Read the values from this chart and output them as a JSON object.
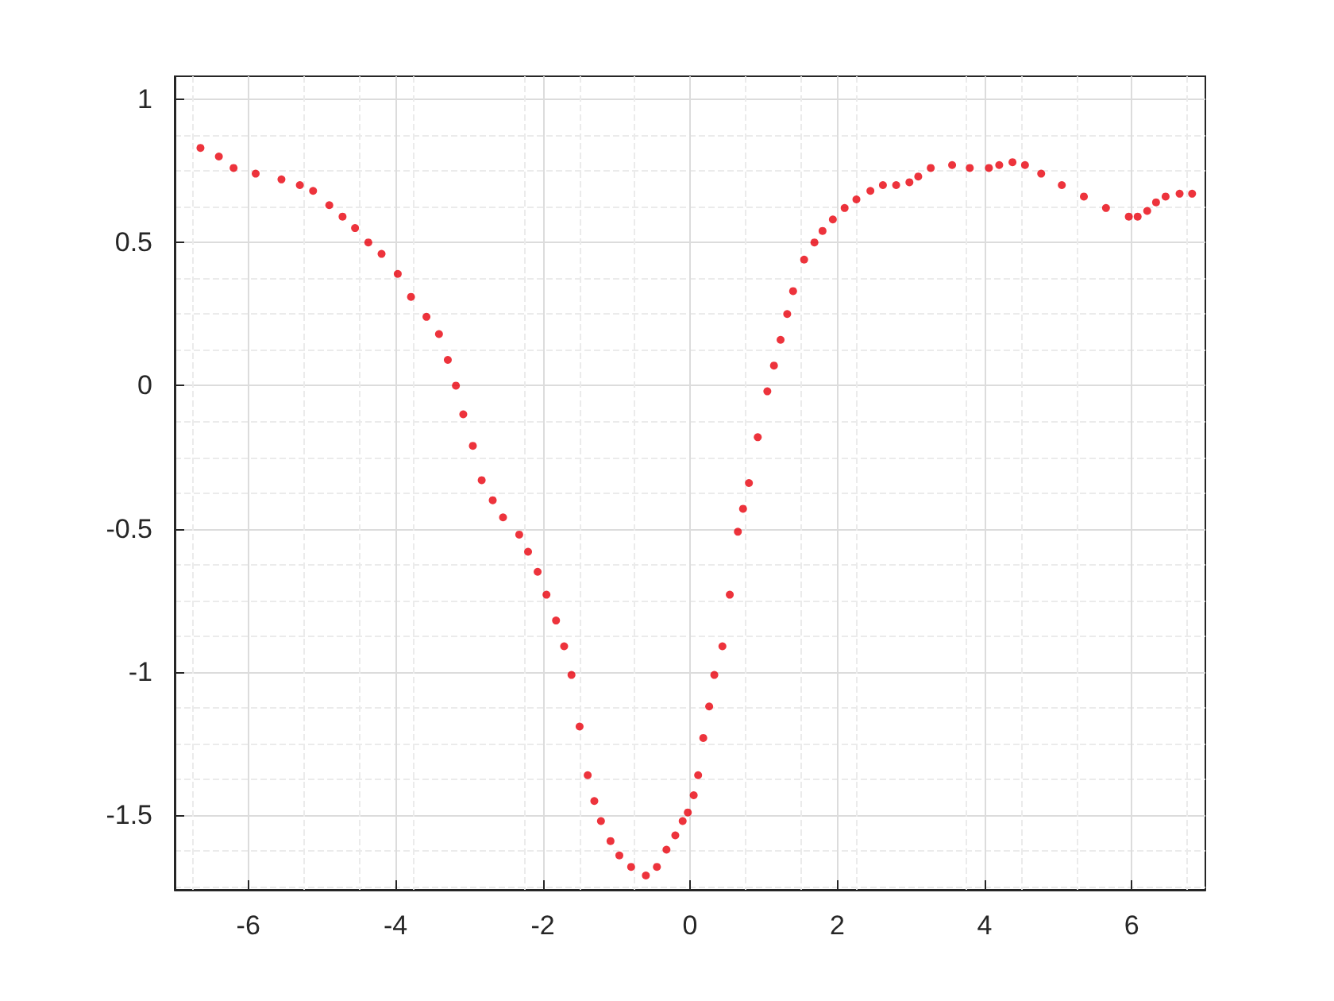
{
  "chart_data": {
    "type": "scatter",
    "marker": "circle",
    "grid": true,
    "xlim": [
      -7,
      7
    ],
    "xticks": [
      -6,
      -4,
      -2,
      0,
      2,
      4,
      6
    ],
    "ylim": [
      -1.76,
      1.08
    ],
    "yticks": [
      -1.5,
      -1,
      -0.5,
      0,
      0.5,
      1
    ],
    "series": [
      {
        "color": "#e8000b",
        "x": [
          -6.65,
          -6.4,
          -6.2,
          -5.9,
          -5.55,
          -5.3,
          -5.12,
          -4.9,
          -4.72,
          -4.55,
          -4.37,
          -4.19,
          -3.97,
          -3.79,
          -3.58,
          -3.41,
          -3.29,
          -3.18,
          -3.08,
          -2.95,
          -2.83,
          -2.68,
          -2.54,
          -2.32,
          -2.2,
          -2.07,
          -1.95,
          -1.82,
          -1.71,
          -1.61,
          -1.5,
          -1.39,
          -1.3,
          -1.21,
          -1.08,
          -0.96,
          -0.8,
          -0.6,
          -0.45,
          -0.32,
          -0.2,
          -0.1,
          -0.03,
          0.05,
          0.11,
          0.18,
          0.26,
          0.33,
          0.44,
          0.54,
          0.65,
          0.72,
          0.8,
          0.92,
          1.05,
          1.14,
          1.23,
          1.32,
          1.4,
          1.55,
          1.69,
          1.8,
          1.94,
          2.1,
          2.26,
          2.45,
          2.62,
          2.8,
          2.98,
          3.1,
          3.27,
          3.56,
          3.8,
          4.06,
          4.2,
          4.38,
          4.55,
          4.77,
          5.05,
          5.35,
          5.65,
          5.96,
          6.08,
          6.21,
          6.33,
          6.46,
          6.65,
          6.82
        ],
        "values": [
          0.83,
          0.8,
          0.76,
          0.74,
          0.72,
          0.7,
          0.68,
          0.63,
          0.59,
          0.55,
          0.5,
          0.46,
          0.39,
          0.31,
          0.24,
          0.18,
          0.09,
          0.0,
          -0.1,
          -0.21,
          -0.33,
          -0.4,
          -0.46,
          -0.52,
          -0.58,
          -0.65,
          -0.73,
          -0.82,
          -0.91,
          -1.01,
          -1.19,
          -1.36,
          -1.45,
          -1.52,
          -1.59,
          -1.64,
          -1.68,
          -1.71,
          -1.68,
          -1.62,
          -1.57,
          -1.52,
          -1.49,
          -1.43,
          -1.36,
          -1.23,
          -1.12,
          -1.01,
          -0.91,
          -0.73,
          -0.51,
          -0.43,
          -0.34,
          -0.18,
          -0.02,
          0.07,
          0.16,
          0.25,
          0.33,
          0.44,
          0.5,
          0.54,
          0.58,
          0.62,
          0.65,
          0.68,
          0.7,
          0.7,
          0.71,
          0.73,
          0.76,
          0.77,
          0.76,
          0.76,
          0.77,
          0.78,
          0.77,
          0.74,
          0.7,
          0.66,
          0.62,
          0.59,
          0.59,
          0.61,
          0.64,
          0.66,
          0.67,
          0.67
        ]
      }
    ]
  }
}
